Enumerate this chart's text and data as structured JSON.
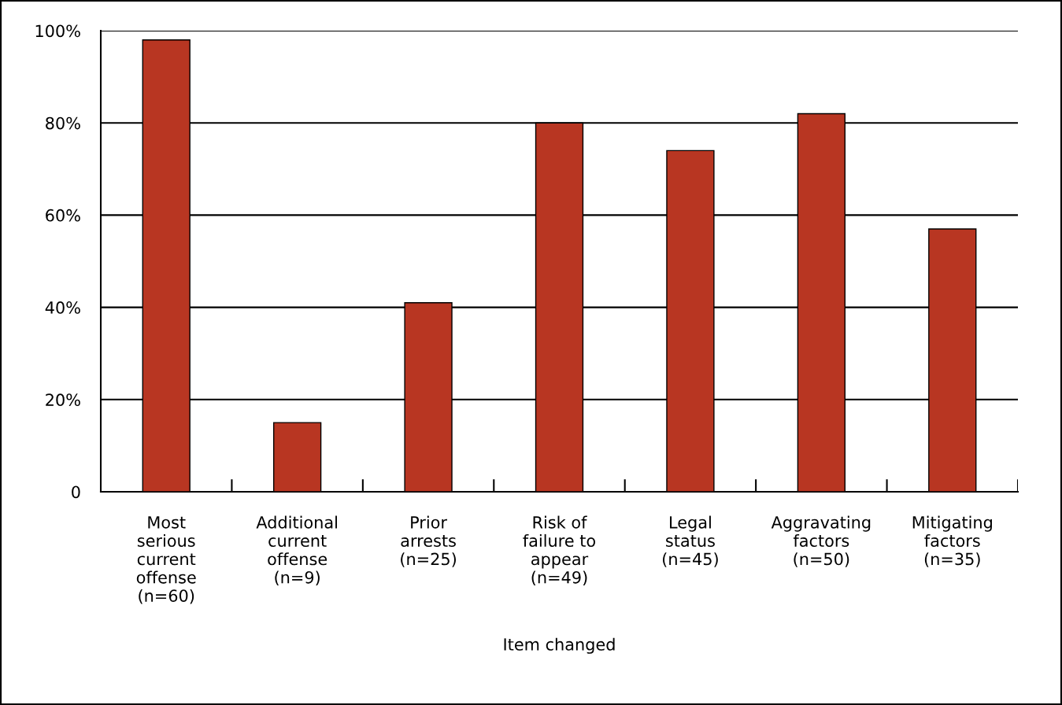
{
  "chart_data": {
    "type": "bar",
    "xlabel": "Item changed",
    "categories": [
      "Most\nserious\ncurrent\noffense\n(n=60)",
      "Additional\ncurrent\noffense\n(n=9)",
      "Prior\narrests\n(n=25)",
      "Risk of\nfailure to\nappear\n(n=49)",
      "Legal\nstatus\n(n=45)",
      "Aggravating\nfactors\n(n=50)",
      "Mitigating\nfactors\n(n=35)"
    ],
    "values": [
      98,
      15,
      41,
      80,
      74,
      82,
      57
    ],
    "color": "#b83622",
    "ylim": [
      0,
      100
    ],
    "yticks": [
      {
        "value": 0,
        "label": "0"
      },
      {
        "value": 20,
        "label": "20%"
      },
      {
        "value": 40,
        "label": "40%"
      },
      {
        "value": 60,
        "label": "60%"
      },
      {
        "value": 80,
        "label": "80%"
      },
      {
        "value": 100,
        "label": "100%"
      }
    ],
    "grid": "y"
  }
}
